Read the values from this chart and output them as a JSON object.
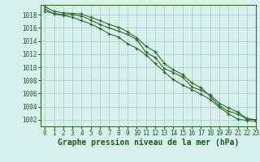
{
  "x": [
    0,
    1,
    2,
    3,
    4,
    5,
    6,
    7,
    8,
    9,
    10,
    11,
    12,
    13,
    14,
    15,
    16,
    17,
    18,
    19,
    20,
    21,
    22,
    23
  ],
  "line1": [
    1018.5,
    1018.2,
    1018.0,
    1018.0,
    1017.8,
    1017.2,
    1016.5,
    1016.0,
    1015.5,
    1015.0,
    1014.2,
    1012.3,
    1011.5,
    1009.8,
    1009.2,
    1008.5,
    1007.0,
    1006.5,
    1005.8,
    1004.5,
    1003.8,
    1003.2,
    1002.2,
    1002.0
  ],
  "line2": [
    1019.2,
    1018.5,
    1018.3,
    1018.2,
    1018.1,
    1017.6,
    1017.1,
    1016.5,
    1016.1,
    1015.4,
    1014.5,
    1013.2,
    1012.4,
    1010.6,
    1009.6,
    1008.9,
    1007.6,
    1006.9,
    1005.6,
    1004.1,
    1003.3,
    1002.9,
    1002.1,
    1002.0
  ],
  "line3": [
    1018.9,
    1018.1,
    1017.9,
    1017.6,
    1017.1,
    1016.6,
    1015.9,
    1015.1,
    1014.6,
    1013.6,
    1012.9,
    1011.9,
    1010.6,
    1009.3,
    1008.1,
    1007.3,
    1006.6,
    1005.9,
    1005.1,
    1003.9,
    1002.9,
    1002.1,
    1001.9,
    1001.8
  ],
  "bg_color": "#d8f0ee",
  "line_color": "#2d6e2d",
  "grid_color": "#b0d4cc",
  "xlabel": "Graphe pression niveau de la mer (hPa)",
  "ylim": [
    1001.0,
    1019.5
  ],
  "xlim": [
    -0.5,
    23
  ],
  "yticks": [
    1002,
    1004,
    1006,
    1008,
    1010,
    1012,
    1014,
    1016,
    1018
  ],
  "xticks": [
    0,
    1,
    2,
    3,
    4,
    5,
    6,
    7,
    8,
    9,
    10,
    11,
    12,
    13,
    14,
    15,
    16,
    17,
    18,
    19,
    20,
    21,
    22,
    23
  ],
  "tick_color": "#1a5c1a",
  "label_fontsize": 5.5,
  "xlabel_fontsize": 7.0,
  "spine_color": "#2d6e2d"
}
